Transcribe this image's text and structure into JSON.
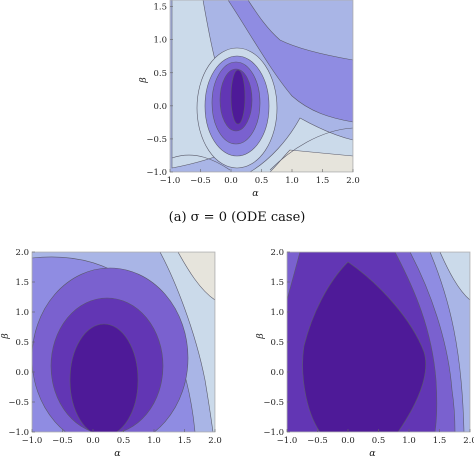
{
  "colors": {
    "background": "#ffffff",
    "frame": "#b8b8b8",
    "levels": [
      "#e6e4dc",
      "#cbdaea",
      "#a9b5e6",
      "#8f8ce2",
      "#7a61cf",
      "#6236b4",
      "#4e1a98"
    ]
  },
  "chart_data": [
    {
      "type": "contour",
      "panel": "top",
      "caption": "(a) σ = 0 (ODE case)",
      "xlabel": "α",
      "ylabel": "β",
      "xlim": [
        -1.0,
        2.0
      ],
      "ylim": [
        -1.0,
        1.6
      ],
      "xticks": [
        "−1.0",
        "−0.5",
        "0.0",
        "0.5",
        "1.0",
        "1.5",
        "2.0"
      ],
      "yticks": [
        "−1.0",
        "−0.5",
        "0.0",
        "0.5",
        "1.0",
        "1.5"
      ],
      "grid": false
    },
    {
      "type": "contour",
      "panel": "bottom-left",
      "xlabel": "α",
      "ylabel": "β",
      "xlim": [
        -1.0,
        2.0
      ],
      "ylim": [
        -1.0,
        2.0
      ],
      "xticks": [
        "−1.0",
        "−0.5",
        "0.0",
        "0.5",
        "1.0",
        "1.5",
        "2.0"
      ],
      "yticks": [
        "−1.0",
        "−0.5",
        "0.0",
        "0.5",
        "1.0",
        "1.5",
        "2.0"
      ],
      "grid": false
    },
    {
      "type": "contour",
      "panel": "bottom-right",
      "xlabel": "α",
      "ylabel": "β",
      "xlim": [
        -1.0,
        2.0
      ],
      "ylim": [
        -1.0,
        2.0
      ],
      "xticks": [
        "−1.0",
        "−0.5",
        "0.0",
        "0.5",
        "1.0",
        "1.5",
        "2.0"
      ],
      "yticks": [
        "−1.0",
        "−0.5",
        "0.0",
        "0.5",
        "1.0",
        "1.5",
        "2.0"
      ],
      "grid": false
    }
  ]
}
